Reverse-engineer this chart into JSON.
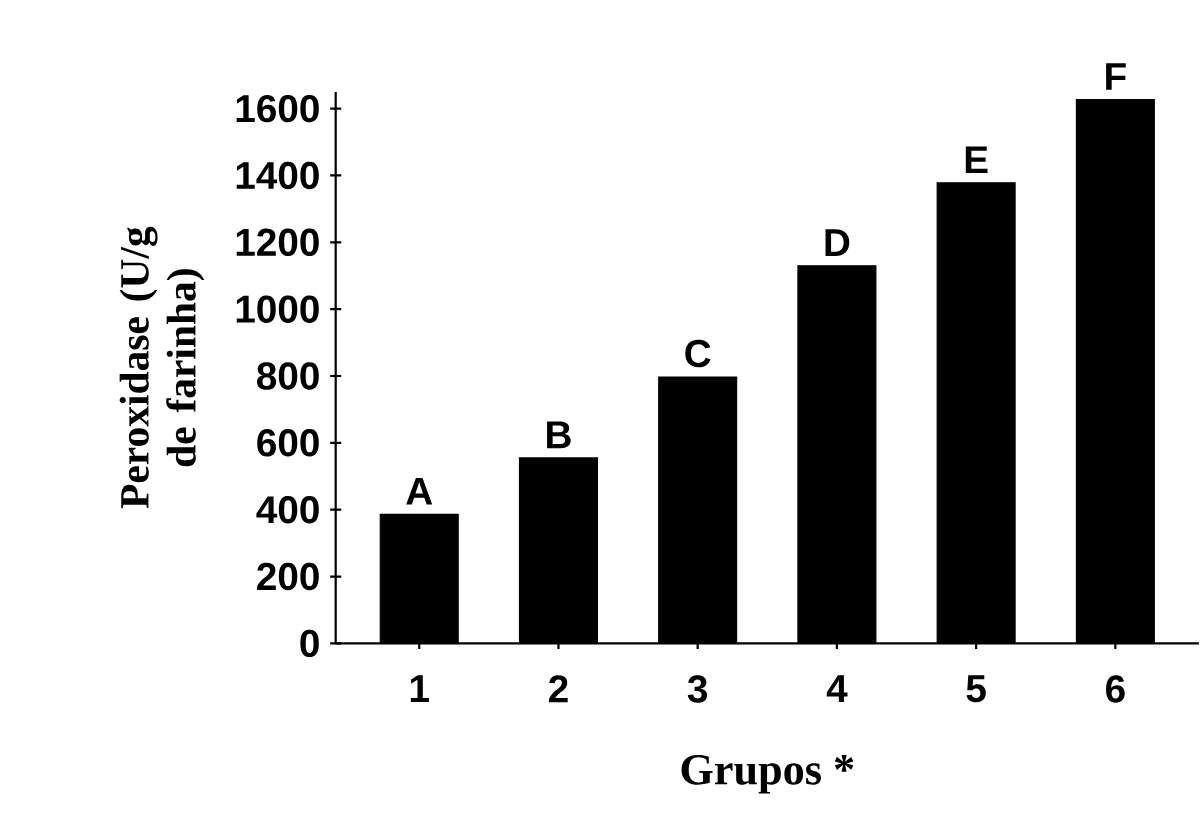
{
  "chart_data": {
    "type": "bar",
    "xlabel": "Grupos *",
    "ylabel": "Peroxidase (U/g de farinha)",
    "categories": [
      "1",
      "2",
      "3",
      "4",
      "5",
      "6"
    ],
    "values": [
      386,
      555,
      797,
      1130,
      1378,
      1627
    ],
    "color": "#000000",
    "ylim": [
      0,
      1650
    ],
    "yticks": [
      0,
      200,
      400,
      600,
      800,
      1000,
      1200,
      1400,
      1600
    ],
    "annotations": [
      {
        "text": "A",
        "x": "1",
        "y": 386
      },
      {
        "text": "B",
        "x": "2",
        "y": 555
      },
      {
        "text": "C",
        "x": "3",
        "y": 797
      },
      {
        "text": "D",
        "x": "4",
        "y": 1130
      },
      {
        "text": "E",
        "x": "5",
        "y": 1378
      },
      {
        "text": "F",
        "x": "6",
        "y": 1627
      }
    ]
  }
}
